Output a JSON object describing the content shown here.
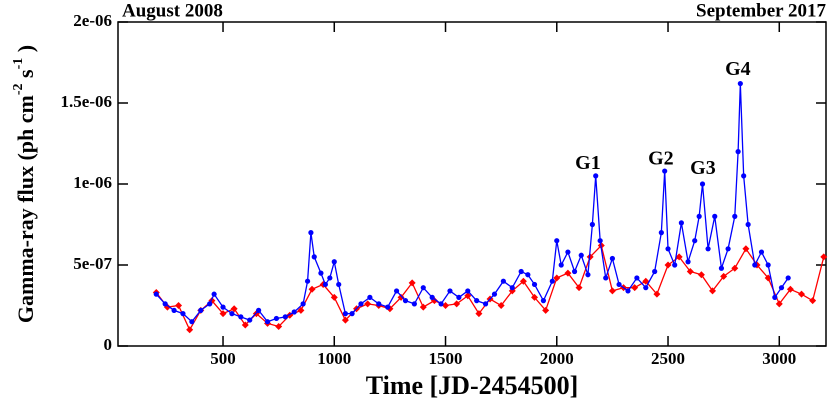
{
  "chart_data": {
    "type": "line",
    "top_left_label": "August 2008",
    "top_right_label": "September 2017",
    "xlabel": "Time [JD-2454500]",
    "ylabel": [
      "Gamma-ray flux  (ph cm",
      "-2",
      " s",
      "-1",
      " )"
    ],
    "xlim": [
      28,
      3210
    ],
    "ylim": [
      0,
      2e-06
    ],
    "xticks": [
      500,
      1000,
      1500,
      2000,
      2500,
      3000
    ],
    "yticks": [
      0,
      {
        "value": 5e-07,
        "label": "5e-07"
      },
      {
        "value": 1e-06,
        "label": "1e-06"
      },
      {
        "value": 1.5e-06,
        "label": "1.5e-06"
      },
      {
        "value": 2e-06,
        "label": "2e-06"
      }
    ],
    "annotations": [
      {
        "text": "G1",
        "x": 2140,
        "y": 1.12e-06
      },
      {
        "text": "G2",
        "x": 2468,
        "y": 1.15e-06
      },
      {
        "text": "G3",
        "x": 2657,
        "y": 1.09e-06
      },
      {
        "text": "G4",
        "x": 2814,
        "y": 1.7e-06
      }
    ],
    "series": [
      {
        "color": "#ff0000",
        "marker": "diamond",
        "x": [
          200,
          250,
          300,
          350,
          400,
          450,
          500,
          550,
          600,
          650,
          700,
          750,
          800,
          850,
          900,
          950,
          1000,
          1050,
          1100,
          1150,
          1200,
          1250,
          1300,
          1350,
          1400,
          1450,
          1500,
          1550,
          1600,
          1650,
          1700,
          1750,
          1800,
          1850,
          1900,
          1950,
          2000,
          2050,
          2100,
          2150,
          2200,
          2250,
          2300,
          2350,
          2400,
          2450,
          2500,
          2550,
          2600,
          2650,
          2700,
          2750,
          2800,
          2850,
          2900,
          2950,
          3000,
          3050,
          3100,
          3150,
          3200
        ],
        "values": [
          3.3e-07,
          2.4e-07,
          2.5e-07,
          1e-07,
          2.2e-07,
          2.8e-07,
          2e-07,
          2.3e-07,
          1.3e-07,
          2e-07,
          1.4e-07,
          1.2e-07,
          1.9e-07,
          2.2e-07,
          3.5e-07,
          3.8e-07,
          3e-07,
          1.6e-07,
          2.3e-07,
          2.6e-07,
          2.5e-07,
          2.3e-07,
          3e-07,
          3.9e-07,
          2.4e-07,
          2.8e-07,
          2.5e-07,
          2.6e-07,
          3.1e-07,
          2e-07,
          2.9e-07,
          2.5e-07,
          3.4e-07,
          4e-07,
          3e-07,
          2.2e-07,
          4.2e-07,
          4.5e-07,
          3.6e-07,
          5.5e-07,
          6.2e-07,
          3.4e-07,
          3.6e-07,
          3.6e-07,
          4e-07,
          3.2e-07,
          5e-07,
          5.5e-07,
          4.6e-07,
          4.4e-07,
          3.4e-07,
          4.3e-07,
          4.8e-07,
          6e-07,
          5e-07,
          4.2e-07,
          2.6e-07,
          3.5e-07,
          3.2e-07,
          2.8e-07,
          5.5e-07
        ]
      },
      {
        "color": "#0000ff",
        "marker": "circle",
        "x": [
          200,
          240,
          280,
          320,
          360,
          400,
          440,
          460,
          500,
          540,
          580,
          620,
          660,
          700,
          740,
          780,
          820,
          860,
          880,
          895,
          910,
          940,
          960,
          980,
          1000,
          1020,
          1050,
          1080,
          1120,
          1160,
          1200,
          1240,
          1280,
          1320,
          1360,
          1400,
          1440,
          1480,
          1520,
          1560,
          1600,
          1640,
          1680,
          1720,
          1760,
          1800,
          1840,
          1870,
          1900,
          1940,
          1980,
          2000,
          2020,
          2050,
          2080,
          2110,
          2140,
          2160,
          2175,
          2195,
          2220,
          2250,
          2280,
          2320,
          2360,
          2400,
          2440,
          2470,
          2485,
          2500,
          2530,
          2560,
          2590,
          2620,
          2640,
          2655,
          2680,
          2710,
          2740,
          2770,
          2800,
          2815,
          2825,
          2840,
          2860,
          2890,
          2920,
          2950,
          2980,
          3010,
          3040
        ],
        "values": [
          3.2e-07,
          2.6e-07,
          2.2e-07,
          2e-07,
          1.5e-07,
          2.2e-07,
          2.6e-07,
          3.2e-07,
          2.4e-07,
          2e-07,
          1.8e-07,
          1.6e-07,
          2.2e-07,
          1.5e-07,
          1.7e-07,
          1.8e-07,
          2.1e-07,
          2.6e-07,
          4e-07,
          7e-07,
          5.5e-07,
          4.5e-07,
          3.8e-07,
          4.2e-07,
          5.2e-07,
          3.8e-07,
          2e-07,
          2e-07,
          2.6e-07,
          3e-07,
          2.6e-07,
          2.4e-07,
          3.4e-07,
          2.8e-07,
          2.6e-07,
          3.6e-07,
          3e-07,
          2.6e-07,
          3.4e-07,
          3e-07,
          3.4e-07,
          2.8e-07,
          2.6e-07,
          3.2e-07,
          4e-07,
          3.6e-07,
          4.6e-07,
          4.4e-07,
          3.8e-07,
          2.8e-07,
          4e-07,
          6.5e-07,
          5e-07,
          5.8e-07,
          4.6e-07,
          5.6e-07,
          4.4e-07,
          7.5e-07,
          1.05e-06,
          6.5e-07,
          4.2e-07,
          5.4e-07,
          3.8e-07,
          3.4e-07,
          4.2e-07,
          3.6e-07,
          4.6e-07,
          7e-07,
          1.08e-06,
          6e-07,
          5e-07,
          7.6e-07,
          5.2e-07,
          6.5e-07,
          8e-07,
          1e-06,
          6e-07,
          8e-07,
          4.8e-07,
          6e-07,
          8e-07,
          1.2e-06,
          1.62e-06,
          1.05e-06,
          7.5e-07,
          5e-07,
          5.8e-07,
          5e-07,
          3e-07,
          3.6e-07,
          4.2e-07
        ]
      }
    ]
  }
}
